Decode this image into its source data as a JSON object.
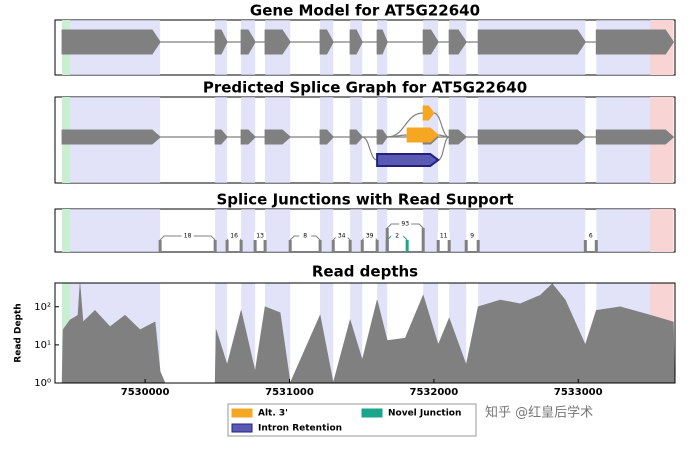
{
  "chart_data": [
    {
      "type": "gene-model",
      "title": "Gene Model for AT5G22640",
      "xlim": [
        7529376,
        7533670
      ],
      "exons": [
        [
          7529425,
          7530104
        ],
        [
          7530485,
          7530568
        ],
        [
          7530665,
          7530762
        ],
        [
          7530831,
          7531005
        ],
        [
          7531212,
          7531303
        ],
        [
          7531420,
          7531504
        ],
        [
          7531607,
          7531677
        ],
        [
          7531926,
          7532030
        ],
        [
          7532106,
          7532224
        ],
        [
          7532307,
          7533049
        ],
        [
          7533125,
          7533659
        ]
      ],
      "utr5": [
        7529425,
        7529480
      ],
      "utr3": [
        7533499,
        7533659
      ],
      "color": "#808080"
    },
    {
      "type": "splice-graph",
      "title": "Predicted Splice Graph for AT5G22640",
      "xlim": [
        7529376,
        7533670
      ],
      "exons": [
        [
          7529425,
          7530104
        ],
        [
          7530485,
          7530568
        ],
        [
          7530665,
          7530762
        ],
        [
          7530831,
          7531005
        ],
        [
          7531212,
          7531303
        ],
        [
          7531420,
          7531504
        ],
        [
          7531607,
          7531677
        ],
        [
          7531926,
          7532030
        ],
        [
          7532106,
          7532224
        ],
        [
          7532307,
          7533049
        ],
        [
          7533125,
          7533659
        ]
      ],
      "alt3": [
        [
          7531926,
          7532000
        ],
        [
          7531815,
          7532030
        ]
      ],
      "intron_retention": [
        [
          7531607,
          7532030
        ]
      ],
      "color": "#808080",
      "alt3_color": "#f5a623",
      "ir_color": "#5a5ab4"
    },
    {
      "type": "junctions",
      "title": "Splice Junctions with Read Support",
      "xlim": [
        7529376,
        7533670
      ],
      "junctions": [
        {
          "start": 7530104,
          "end": 7530485,
          "count": 18
        },
        {
          "start": 7530568,
          "end": 7530665,
          "count": 16
        },
        {
          "start": 7530762,
          "end": 7530831,
          "count": 13
        },
        {
          "start": 7531005,
          "end": 7531212,
          "count": 8
        },
        {
          "start": 7531303,
          "end": 7531420,
          "count": 34
        },
        {
          "start": 7531504,
          "end": 7531607,
          "count": 39
        },
        {
          "start": 7531677,
          "end": 7531815,
          "count": 2,
          "novel": true
        },
        {
          "start": 7531677,
          "end": 7531926,
          "count": 93
        },
        {
          "start": 7532030,
          "end": 7532106,
          "count": 11
        },
        {
          "start": 7532224,
          "end": 7532307,
          "count": 9
        },
        {
          "start": 7533049,
          "end": 7533125,
          "count": 6
        }
      ],
      "color": "#808080",
      "novel_color": "#1aa68a"
    },
    {
      "type": "area",
      "title": "Read depths",
      "y_label": "Read Depth",
      "xlim": [
        7529376,
        7533670
      ],
      "ylim": [
        1,
        420
      ],
      "log_scale": true,
      "xticks": [
        7530000,
        7531000,
        7532000,
        7533000
      ],
      "yticks": [
        {
          "value": 1,
          "label": "10⁰"
        },
        {
          "value": 10,
          "label": "10¹"
        },
        {
          "value": 100,
          "label": "10²"
        }
      ],
      "x": [
        7529425,
        7529432,
        7529480,
        7529535,
        7529549,
        7529570,
        7529653,
        7529757,
        7529861,
        7529965,
        7530069,
        7530104,
        7530138,
        7530485,
        7530492,
        7530568,
        7530665,
        7530762,
        7530831,
        7530935,
        7531005,
        7531212,
        7531303,
        7531420,
        7531504,
        7531607,
        7531677,
        7531802,
        7531926,
        7532030,
        7532106,
        7532224,
        7532307,
        7532459,
        7532598,
        7532737,
        7532820,
        7532910,
        7533049,
        7533125,
        7533291,
        7533499,
        7533659,
        7533666
      ],
      "values": [
        1,
        25,
        45,
        60,
        400,
        40,
        80,
        30,
        60,
        25,
        40,
        2,
        1,
        1,
        25,
        3,
        80,
        2,
        100,
        70,
        1,
        60,
        1,
        45,
        4,
        150,
        13,
        15,
        200,
        10,
        50,
        3,
        100,
        150,
        120,
        200,
        400,
        150,
        10,
        80,
        100,
        60,
        40,
        1
      ],
      "color": "#808080"
    }
  ],
  "legend": [
    {
      "name": "Alt. 3'",
      "color": "#f5a623"
    },
    {
      "name": "Novel Junction",
      "color": "#1aa68a"
    },
    {
      "name": "Intron Retention",
      "color": "#5a5ab4"
    }
  ],
  "watermark": "知乎 @红皇后学术"
}
